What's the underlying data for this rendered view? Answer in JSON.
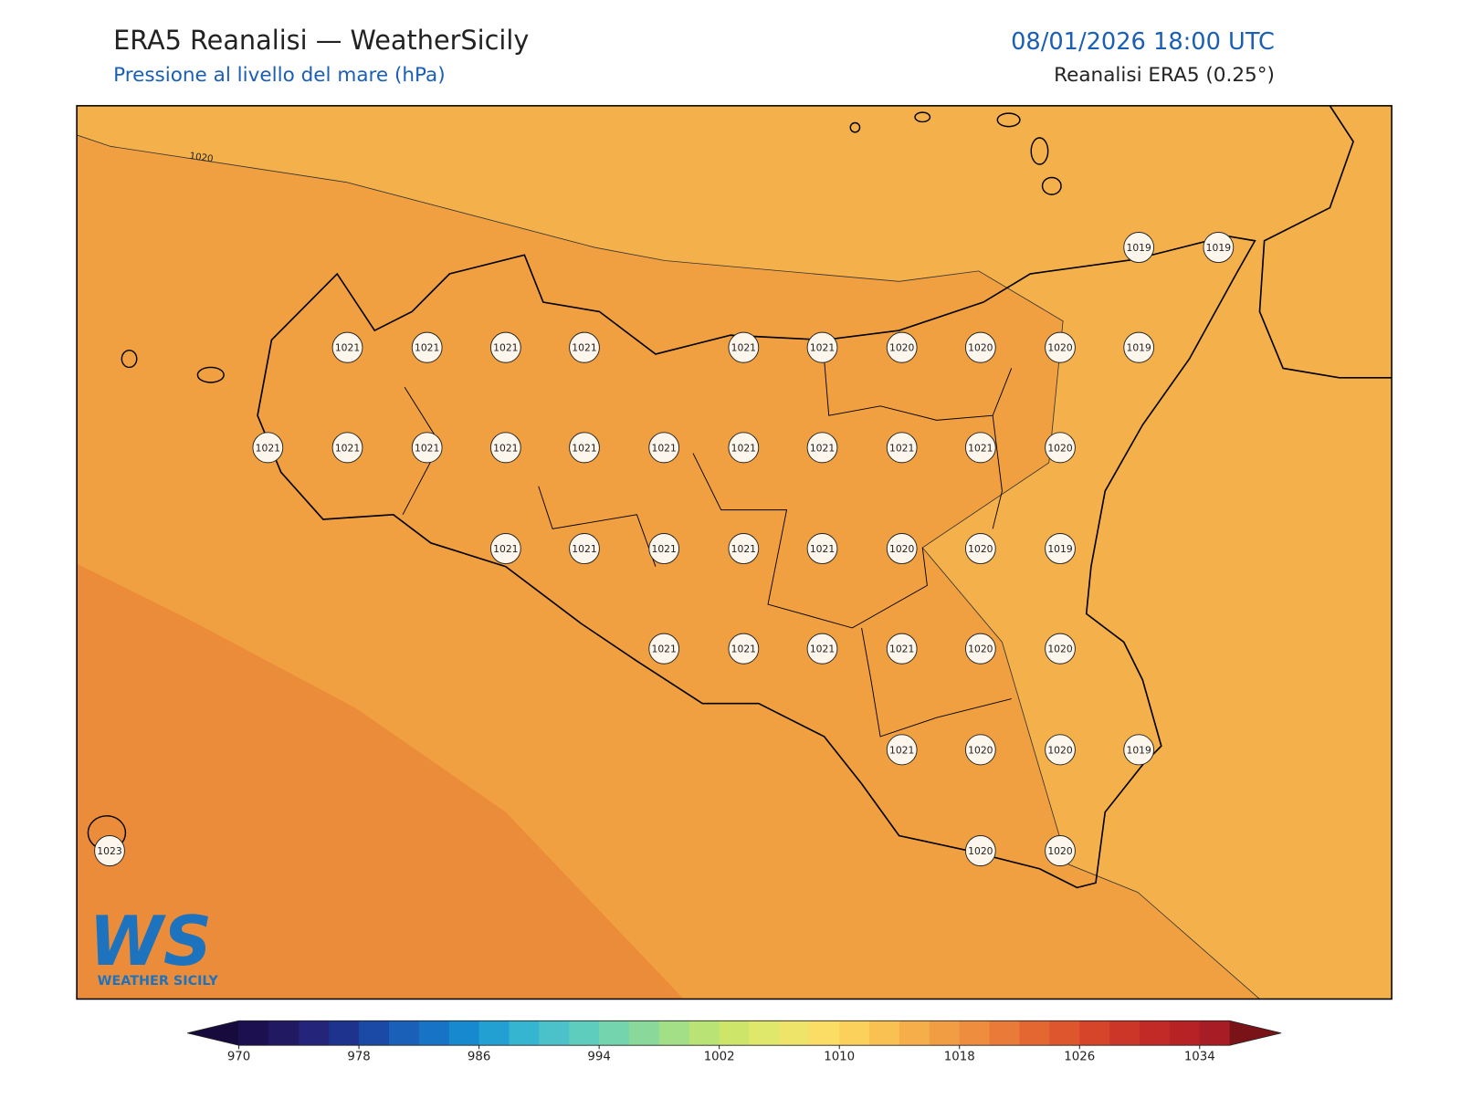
{
  "header": {
    "title": "ERA5 Reanalisi — WeatherSicily",
    "subtitle": "Pressione al livello del mare (hPa)",
    "datetime": "08/01/2026 18:00 UTC",
    "source": "Reanalisi ERA5 (0.25°)"
  },
  "contour_label": "1020",
  "stations": [
    1021,
    1021,
    1021,
    1021,
    1021,
    1021,
    1020,
    1020,
    1020,
    1019,
    1019,
    1019,
    1021,
    1021,
    1021,
    1021,
    1021,
    1021,
    1021,
    1021,
    1021,
    1021,
    1020,
    1021,
    1021,
    1021,
    1021,
    1021,
    1020,
    1020,
    1019,
    1021,
    1021,
    1021,
    1021,
    1020,
    1020,
    1021,
    1020,
    1020,
    1019,
    1020,
    1020,
    1023
  ],
  "logo": {
    "mark": "WS",
    "text": "WEATHER SICILY"
  },
  "colorbar": {
    "lim": [
      970,
      1036
    ],
    "ticks": [
      970,
      978,
      986,
      994,
      1002,
      1010,
      1018,
      1026,
      1034
    ]
  }
}
